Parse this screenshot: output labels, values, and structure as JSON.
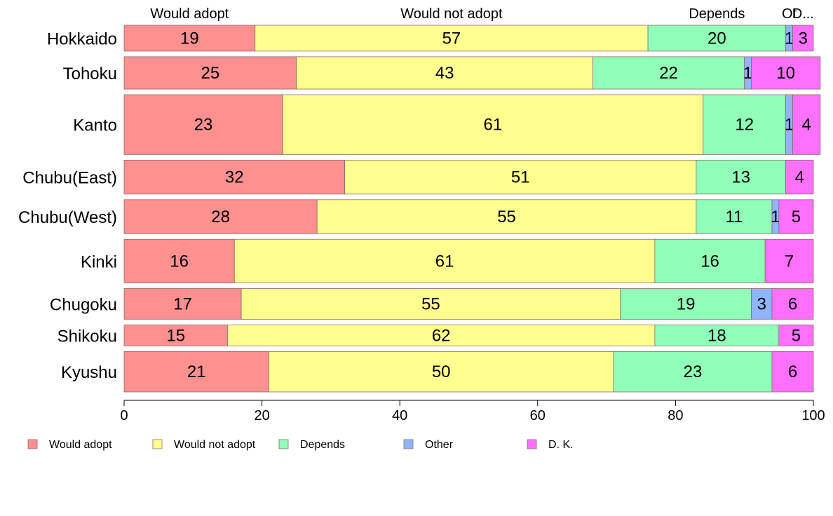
{
  "chart_data": {
    "type": "bar",
    "orientation": "horizontal",
    "stacked": true,
    "categories": [
      "Hokkaido",
      "Tohoku",
      "Kanto",
      "Chubu(East)",
      "Chubu(West)",
      "Kinki",
      "Chugoku",
      "Shikoku",
      "Kyushu"
    ],
    "category_weights": [
      0.8,
      1.0,
      1.85,
      1.05,
      1.05,
      1.35,
      0.95,
      0.65,
      1.25
    ],
    "series": [
      {
        "name": "Would adopt",
        "color": "#FF9090",
        "values": [
          19,
          25,
          23,
          32,
          28,
          16,
          17,
          15,
          21
        ]
      },
      {
        "name": "Would not adopt",
        "color": "#FFFF90",
        "values": [
          57,
          43,
          61,
          51,
          55,
          61,
          55,
          62,
          50
        ]
      },
      {
        "name": "Depends",
        "color": "#90FFB8",
        "values": [
          20,
          22,
          12,
          13,
          11,
          16,
          19,
          18,
          23
        ]
      },
      {
        "name": "Other",
        "color": "#90B4FF",
        "values": [
          1,
          1,
          1,
          0,
          1,
          0,
          3,
          0,
          0
        ]
      },
      {
        "name": "D. K.",
        "color": "#FF70FF",
        "values": [
          3,
          10,
          4,
          4,
          5,
          7,
          6,
          5,
          6
        ]
      }
    ],
    "value_labels": [
      [
        "19",
        "57",
        "20",
        "1",
        "3"
      ],
      [
        "25",
        "43",
        "22",
        "1",
        "10"
      ],
      [
        "23",
        "61",
        "12",
        "1",
        "4"
      ],
      [
        "32",
        "51",
        "13",
        "",
        "4"
      ],
      [
        "28",
        "55",
        "11",
        "1",
        "5"
      ],
      [
        "16",
        "61",
        "16",
        "",
        "7"
      ],
      [
        "17",
        "55",
        "19",
        "3",
        "6"
      ],
      [
        "15",
        "62",
        "18",
        "",
        "5"
      ],
      [
        "21",
        "50",
        "23",
        "",
        "6"
      ]
    ],
    "top_labels": [
      "Would adopt",
      "Would not adopt",
      "Depends",
      "Ot",
      "D..."
    ],
    "xlim": [
      0,
      100
    ],
    "xticks": [
      0,
      20,
      40,
      60,
      80,
      100
    ],
    "legend_position": "bottom",
    "grid": false
  }
}
